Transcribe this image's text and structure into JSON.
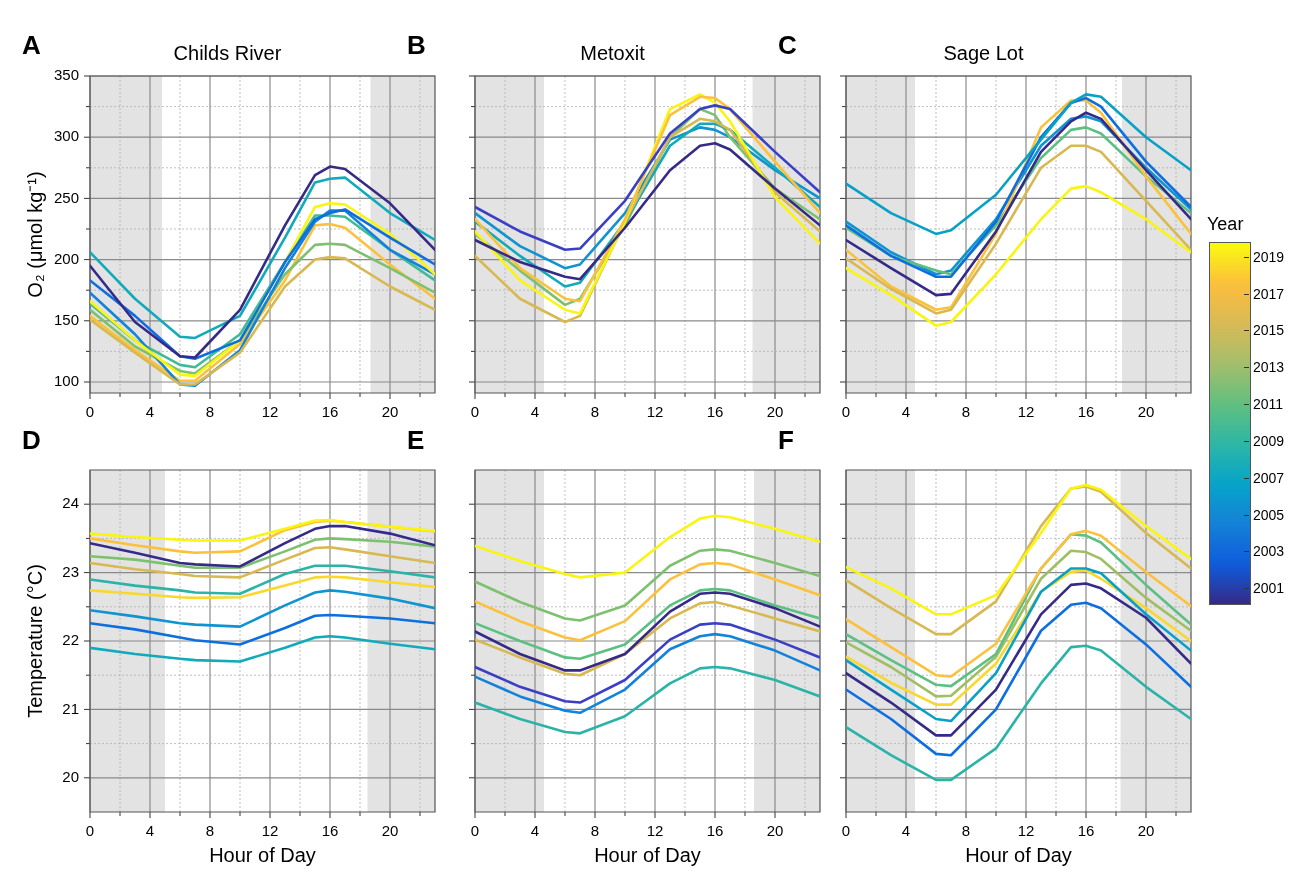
{
  "chart_data": [
    {
      "type": "line",
      "title": "Childs River",
      "annotations": [
        "A"
      ],
      "ylabel": "O₂ (μmol kg⁻¹)",
      "x": [
        0,
        3,
        6,
        7,
        10,
        13,
        15,
        16,
        17,
        20,
        23
      ],
      "xlim": [
        0,
        23
      ],
      "xticks": [
        0,
        {
          "value": 2,
          "label": null
        },
        4,
        {
          "value": 6,
          "label": null
        },
        8,
        {
          "value": 10,
          "label": null
        },
        12,
        {
          "value": 14,
          "label": null
        },
        16,
        {
          "value": 18,
          "label": null
        },
        20,
        {
          "value": 22,
          "label": null
        }
      ],
      "ylim": [
        91,
        350
      ],
      "yticks": [
        100,
        {
          "value": 125,
          "label": null
        },
        150,
        {
          "value": 175,
          "label": null
        },
        200,
        {
          "value": 225,
          "label": null
        },
        250,
        {
          "value": 275,
          "label": null
        },
        300,
        {
          "value": 325,
          "label": null
        },
        350
      ],
      "grid": true,
      "bands": [
        {
          "axis": "x",
          "from": 0,
          "to": 4.8,
          "color": "#e3e3e3"
        },
        {
          "axis": "x",
          "from": 18.7,
          "to": 23,
          "color": "#e3e3e3"
        }
      ],
      "series": [
        {
          "color": "#352a87",
          "values": [
            195,
            149,
            121,
            120,
            159,
            228,
            269,
            276,
            274,
            246,
            208
          ]
        },
        {
          "color": "#10aabb",
          "values": [
            206,
            168,
            137,
            136,
            154,
            218,
            263,
            266,
            267,
            238,
            216
          ]
        },
        {
          "color": "#0d6ee0",
          "values": [
            183,
            154,
            121,
            119,
            134,
            198,
            233,
            238,
            241,
            218,
            196
          ]
        },
        {
          "color": "#f9f50f",
          "values": [
            166,
            134,
            106,
            105,
            134,
            198,
            243,
            246,
            245,
            221,
            188
          ]
        },
        {
          "color": "#d8b851",
          "values": [
            151,
            124,
            98,
            98,
            124,
            178,
            200,
            202,
            201,
            178,
            159
          ]
        },
        {
          "color": "#1282da",
          "values": [
            173,
            139,
            98,
            97,
            126,
            193,
            231,
            240,
            240,
            208,
            188
          ]
        },
        {
          "color": "#7dc170",
          "values": [
            159,
            129,
            109,
            107,
            134,
            188,
            212,
            213,
            212,
            193,
            173
          ]
        },
        {
          "color": "#fcc13b",
          "values": [
            154,
            126,
            101,
            101,
            131,
            183,
            228,
            229,
            226,
            196,
            168
          ]
        },
        {
          "color": "#3fbb96",
          "values": [
            164,
            134,
            114,
            112,
            139,
            198,
            236,
            236,
            235,
            208,
            183
          ]
        }
      ]
    },
    {
      "type": "line",
      "title": "Metoxit",
      "annotations": [
        "B"
      ],
      "tick_labels": "x",
      "x": [
        0,
        3,
        6,
        7,
        10,
        13,
        15,
        16,
        17,
        20,
        23
      ],
      "xlim": [
        0,
        23
      ],
      "xticks": [
        0,
        {
          "value": 2,
          "label": null
        },
        4,
        {
          "value": 6,
          "label": null
        },
        8,
        {
          "value": 10,
          "label": null
        },
        12,
        {
          "value": 14,
          "label": null
        },
        16,
        {
          "value": 18,
          "label": null
        },
        20,
        {
          "value": 22,
          "label": null
        }
      ],
      "ylim": [
        91,
        350
      ],
      "yticks": [
        100,
        {
          "value": 125,
          "label": null
        },
        150,
        {
          "value": 175,
          "label": null
        },
        200,
        {
          "value": 225,
          "label": null
        },
        250,
        {
          "value": 275,
          "label": null
        },
        300,
        {
          "value": 325,
          "label": null
        },
        350
      ],
      "grid": true,
      "bands": [
        {
          "axis": "x",
          "from": 0,
          "to": 4.6,
          "color": "#e3e3e3"
        },
        {
          "axis": "x",
          "from": 18.5,
          "to": 23,
          "color": "#e3e3e3"
        }
      ],
      "series": [
        {
          "color": "#352a87",
          "values": [
            216,
            198,
            186,
            184,
            226,
            273,
            293,
            295,
            290,
            258,
            228
          ]
        },
        {
          "color": "#3a3fc4",
          "values": [
            243,
            223,
            208,
            209,
            248,
            303,
            323,
            326,
            323,
            288,
            255
          ]
        },
        {
          "color": "#fcc13b",
          "values": [
            233,
            193,
            168,
            166,
            233,
            318,
            333,
            332,
            323,
            280,
            238
          ]
        },
        {
          "color": "#f9f50f",
          "values": [
            223,
            183,
            159,
            156,
            231,
            323,
            335,
            328,
            313,
            251,
            213
          ]
        },
        {
          "color": "#d8b851",
          "values": [
            203,
            168,
            149,
            154,
            231,
            300,
            315,
            313,
            306,
            255,
            223
          ]
        },
        {
          "color": "#10aabb",
          "values": [
            231,
            203,
            178,
            181,
            231,
            293,
            311,
            311,
            306,
            275,
            243
          ]
        },
        {
          "color": "#7dc170",
          "values": [
            221,
            191,
            163,
            168,
            228,
            300,
            323,
            318,
            300,
            258,
            233
          ]
        },
        {
          "color": "#0f93d1",
          "values": [
            238,
            211,
            193,
            196,
            238,
            298,
            308,
            306,
            300,
            273,
            250
          ]
        }
      ]
    },
    {
      "type": "line",
      "title": "Sage Lot",
      "annotations": [
        "C"
      ],
      "tick_labels": "x",
      "clabel": "Year",
      "clim": [
        2000.2,
        2019.8
      ],
      "cticks": [
        2001,
        2003,
        2005,
        2007,
        2009,
        2011,
        2013,
        2015,
        2017,
        2019
      ],
      "x": [
        0,
        3,
        6,
        7,
        10,
        13,
        15,
        16,
        17,
        20,
        23
      ],
      "xlim": [
        0,
        23
      ],
      "xticks": [
        0,
        {
          "value": 2,
          "label": null
        },
        4,
        {
          "value": 6,
          "label": null
        },
        8,
        {
          "value": 10,
          "label": null
        },
        12,
        {
          "value": 14,
          "label": null
        },
        16,
        {
          "value": 18,
          "label": null
        },
        20,
        {
          "value": 22,
          "label": null
        }
      ],
      "ylim": [
        91,
        350
      ],
      "yticks": [
        100,
        {
          "value": 125,
          "label": null
        },
        150,
        {
          "value": 175,
          "label": null
        },
        200,
        {
          "value": 225,
          "label": null
        },
        250,
        {
          "value": 275,
          "label": null
        },
        300,
        {
          "value": 325,
          "label": null
        },
        350
      ],
      "grid": true,
      "bands": [
        {
          "axis": "x",
          "from": 0,
          "to": 4.6,
          "color": "#e3e3e3"
        },
        {
          "axis": "x",
          "from": 18.4,
          "to": 23,
          "color": "#e3e3e3"
        }
      ],
      "series": [
        {
          "color": "#07a0c6",
          "values": [
            262,
            238,
            221,
            224,
            253,
            298,
            328,
            335,
            333,
            300,
            273
          ]
        },
        {
          "color": "#f9f50f",
          "values": [
            193,
            171,
            146,
            149,
            188,
            233,
            258,
            260,
            255,
            233,
            206
          ]
        },
        {
          "color": "#352a87",
          "values": [
            216,
            193,
            171,
            172,
            223,
            288,
            313,
            320,
            315,
            273,
            233
          ]
        },
        {
          "color": "#0d6ee0",
          "values": [
            228,
            203,
            186,
            186,
            231,
            300,
            328,
            332,
            325,
            280,
            243
          ]
        },
        {
          "color": "#d8b851",
          "values": [
            201,
            176,
            156,
            159,
            213,
            275,
            293,
            293,
            288,
            248,
            208
          ]
        },
        {
          "color": "#fcc13b",
          "values": [
            208,
            178,
            159,
            161,
            221,
            308,
            330,
            330,
            320,
            268,
            221
          ]
        },
        {
          "color": "#5cc083",
          "values": [
            226,
            203,
            191,
            188,
            228,
            283,
            306,
            308,
            303,
            268,
            238
          ]
        },
        {
          "color": "#0f93d1",
          "values": [
            231,
            206,
            188,
            191,
            233,
            293,
            315,
            317,
            313,
            275,
            241
          ]
        }
      ]
    },
    {
      "type": "line",
      "annotations": [
        "D"
      ],
      "xlabel": "Hour of Day",
      "ylabel": "Temperature (°C)",
      "x": [
        0,
        3,
        6,
        7,
        10,
        13,
        15,
        16,
        17,
        20,
        23
      ],
      "xlim": [
        0,
        23
      ],
      "xticks": [
        0,
        {
          "value": 2,
          "label": null
        },
        4,
        {
          "value": 6,
          "label": null
        },
        8,
        {
          "value": 10,
          "label": null
        },
        12,
        {
          "value": 14,
          "label": null
        },
        16,
        {
          "value": 18,
          "label": null
        },
        20,
        {
          "value": 22,
          "label": null
        }
      ],
      "ylim": [
        19.5,
        24.5
      ],
      "yticks": [
        20,
        {
          "value": 20.5,
          "label": null
        },
        21,
        {
          "value": 21.5,
          "label": null
        },
        22,
        {
          "value": 22.5,
          "label": null
        },
        23,
        {
          "value": 23.5,
          "label": null
        },
        24
      ],
      "grid": true,
      "bands": [
        {
          "axis": "x",
          "from": 0,
          "to": 5,
          "color": "#e3e3e3"
        },
        {
          "axis": "x",
          "from": 18.5,
          "to": 23,
          "color": "#e3e3e3"
        }
      ],
      "series": [
        {
          "color": "#f9f50f",
          "values": [
            23.57,
            23.52,
            23.48,
            23.47,
            23.47,
            23.64,
            23.76,
            23.77,
            23.74,
            23.67,
            23.61
          ]
        },
        {
          "color": "#352a87",
          "values": [
            23.43,
            23.29,
            23.14,
            23.12,
            23.09,
            23.43,
            23.64,
            23.68,
            23.68,
            23.57,
            23.4
          ]
        },
        {
          "color": "#fcc13b",
          "values": [
            23.5,
            23.4,
            23.31,
            23.29,
            23.31,
            23.62,
            23.74,
            23.76,
            23.74,
            23.67,
            23.6
          ]
        },
        {
          "color": "#d8b851",
          "values": [
            23.14,
            23.05,
            22.98,
            22.95,
            22.93,
            23.19,
            23.36,
            23.37,
            23.34,
            23.24,
            23.14
          ]
        },
        {
          "color": "#2bb3a8",
          "values": [
            22.9,
            22.81,
            22.74,
            22.71,
            22.69,
            22.98,
            23.1,
            23.1,
            23.1,
            23.02,
            22.93
          ]
        },
        {
          "color": "#0d6ee0",
          "values": [
            22.26,
            22.17,
            22.05,
            22.01,
            21.95,
            22.19,
            22.37,
            22.38,
            22.37,
            22.33,
            22.26
          ]
        },
        {
          "color": "#10aabb",
          "values": [
            21.9,
            21.81,
            21.74,
            21.72,
            21.7,
            21.9,
            22.05,
            22.07,
            22.05,
            21.96,
            21.88
          ]
        },
        {
          "color": "#0f93d1",
          "values": [
            22.45,
            22.36,
            22.26,
            22.24,
            22.21,
            22.52,
            22.71,
            22.74,
            22.72,
            22.62,
            22.48
          ]
        },
        {
          "color": "#f8d82d",
          "values": [
            22.74,
            22.69,
            22.64,
            22.63,
            22.64,
            22.81,
            22.93,
            22.94,
            22.93,
            22.86,
            22.79
          ]
        },
        {
          "color": "#7dc170",
          "values": [
            23.24,
            23.19,
            23.1,
            23.07,
            23.07,
            23.31,
            23.48,
            23.5,
            23.49,
            23.45,
            23.38
          ]
        }
      ]
    },
    {
      "type": "line",
      "annotations": [
        "E"
      ],
      "xlabel": "Hour of Day",
      "tick_labels": "x",
      "x": [
        0,
        3,
        6,
        7,
        10,
        13,
        15,
        16,
        17,
        20,
        23
      ],
      "xlim": [
        0,
        23
      ],
      "xticks": [
        0,
        {
          "value": 2,
          "label": null
        },
        4,
        {
          "value": 6,
          "label": null
        },
        8,
        {
          "value": 10,
          "label": null
        },
        12,
        {
          "value": 14,
          "label": null
        },
        16,
        {
          "value": 18,
          "label": null
        },
        20,
        {
          "value": 22,
          "label": null
        }
      ],
      "ylim": [
        19.5,
        24.5
      ],
      "yticks": [
        20,
        {
          "value": 20.5,
          "label": null
        },
        21,
        {
          "value": 21.5,
          "label": null
        },
        22,
        {
          "value": 22.5,
          "label": null
        },
        23,
        {
          "value": 23.5,
          "label": null
        },
        24
      ],
      "grid": true,
      "bands": [
        {
          "axis": "x",
          "from": 0,
          "to": 4.6,
          "color": "#e3e3e3"
        },
        {
          "axis": "x",
          "from": 18.6,
          "to": 23,
          "color": "#e3e3e3"
        }
      ],
      "series": [
        {
          "color": "#f9f50f",
          "values": [
            23.39,
            23.17,
            22.98,
            22.93,
            23,
            23.52,
            23.79,
            23.83,
            23.81,
            23.64,
            23.45
          ]
        },
        {
          "color": "#7dc170",
          "values": [
            22.87,
            22.57,
            22.33,
            22.3,
            22.52,
            23.1,
            23.32,
            23.34,
            23.32,
            23.14,
            22.95
          ]
        },
        {
          "color": "#fcc13b",
          "values": [
            22.58,
            22.29,
            22.05,
            22.01,
            22.29,
            22.9,
            23.12,
            23.14,
            23.12,
            22.9,
            22.67
          ]
        },
        {
          "color": "#352a87",
          "values": [
            22.14,
            21.81,
            21.57,
            21.57,
            21.81,
            22.43,
            22.69,
            22.71,
            22.69,
            22.48,
            22.21
          ]
        },
        {
          "color": "#2bb3a8",
          "values": [
            21.1,
            20.86,
            20.67,
            20.65,
            20.9,
            21.38,
            21.6,
            21.62,
            21.6,
            21.43,
            21.19
          ]
        },
        {
          "color": "#1282da",
          "values": [
            21.48,
            21.19,
            20.98,
            20.95,
            21.29,
            21.88,
            22.07,
            22.1,
            22.07,
            21.86,
            21.57
          ]
        },
        {
          "color": "#5cc083",
          "values": [
            22.26,
            22,
            21.76,
            21.74,
            21.95,
            22.52,
            22.74,
            22.76,
            22.74,
            22.52,
            22.33
          ]
        },
        {
          "color": "#3a3fc4",
          "values": [
            21.62,
            21.33,
            21.12,
            21.1,
            21.43,
            22.02,
            22.24,
            22.26,
            22.24,
            22.02,
            21.76
          ]
        },
        {
          "color": "#d8b851",
          "values": [
            22.02,
            21.76,
            21.52,
            21.5,
            21.81,
            22.33,
            22.55,
            22.57,
            22.52,
            22.33,
            22.14
          ]
        }
      ]
    },
    {
      "type": "line",
      "annotations": [
        "F"
      ],
      "xlabel": "Hour of Day",
      "tick_labels": "x",
      "x": [
        0,
        3,
        6,
        7,
        10,
        13,
        15,
        16,
        17,
        20,
        23
      ],
      "xlim": [
        0,
        23
      ],
      "xticks": [
        0,
        {
          "value": 2,
          "label": null
        },
        4,
        {
          "value": 6,
          "label": null
        },
        8,
        {
          "value": 10,
          "label": null
        },
        12,
        {
          "value": 14,
          "label": null
        },
        16,
        {
          "value": 18,
          "label": null
        },
        20,
        {
          "value": 22,
          "label": null
        }
      ],
      "ylim": [
        19.5,
        24.5
      ],
      "yticks": [
        20,
        {
          "value": 20.5,
          "label": null
        },
        21,
        {
          "value": 21.5,
          "label": null
        },
        22,
        {
          "value": 22.5,
          "label": null
        },
        23,
        {
          "value": 23.5,
          "label": null
        },
        24
      ],
      "grid": true,
      "bands": [
        {
          "axis": "x",
          "from": 0,
          "to": 4.6,
          "color": "#e3e3e3"
        },
        {
          "axis": "x",
          "from": 18.3,
          "to": 23,
          "color": "#e3e3e3"
        }
      ],
      "series": [
        {
          "color": "#f9f50f",
          "values": [
            23.08,
            22.77,
            22.39,
            22.39,
            22.67,
            23.58,
            24.23,
            24.28,
            24.21,
            23.68,
            23.2
          ]
        },
        {
          "color": "#d8b851",
          "values": [
            22.89,
            22.48,
            22.1,
            22.1,
            22.58,
            23.68,
            24.23,
            24.26,
            24.18,
            23.58,
            23.06
          ]
        },
        {
          "color": "#fcc13b",
          "values": [
            22.32,
            21.91,
            21.5,
            21.48,
            21.96,
            23.06,
            23.56,
            23.61,
            23.54,
            23.01,
            22.51
          ]
        },
        {
          "color": "#5cc083",
          "values": [
            22.1,
            21.72,
            21.36,
            21.34,
            21.81,
            23.06,
            23.56,
            23.54,
            23.44,
            22.82,
            22.24
          ]
        },
        {
          "color": "#352a87",
          "values": [
            21.53,
            21.1,
            20.62,
            20.62,
            21.29,
            22.39,
            22.82,
            22.84,
            22.77,
            22.34,
            21.67
          ]
        },
        {
          "color": "#0d6ee0",
          "values": [
            21.29,
            20.86,
            20.35,
            20.33,
            21,
            22.15,
            22.53,
            22.56,
            22.48,
            21.95,
            21.33
          ]
        },
        {
          "color": "#2bb3a8",
          "values": [
            20.74,
            20.33,
            19.97,
            19.97,
            20.43,
            21.38,
            21.91,
            21.93,
            21.86,
            21.33,
            20.86
          ]
        },
        {
          "color": "#07a0c6",
          "values": [
            21.72,
            21.29,
            20.86,
            20.83,
            21.53,
            22.72,
            23.06,
            23.06,
            22.99,
            22.39,
            21.86
          ]
        },
        {
          "color": "#f8d82d",
          "values": [
            21.77,
            21.39,
            21.07,
            21.07,
            21.67,
            22.72,
            23.01,
            23.03,
            22.91,
            22.48,
            22
          ]
        },
        {
          "color": "#a0be62",
          "values": [
            21.98,
            21.62,
            21.19,
            21.2,
            21.77,
            22.91,
            23.32,
            23.3,
            23.2,
            22.63,
            22.15
          ]
        }
      ]
    }
  ]
}
